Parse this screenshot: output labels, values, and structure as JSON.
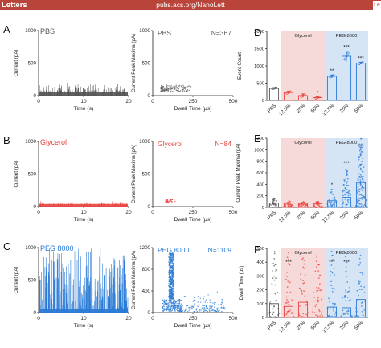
{
  "header": {
    "journal": "Letters",
    "url": "pubs.acs.org/NanoLett",
    "corner": "Le"
  },
  "colors": {
    "pbs": "#555555",
    "glycerol": "#e8433f",
    "peg": "#2b7bd6",
    "glycerol_bg": "#f6d9d9",
    "peg_bg": "#d6e5f6",
    "accent_bar": "#b9443a"
  },
  "panels": {
    "A": {
      "letter": "A",
      "label": "PBS",
      "n_label": "N=367"
    },
    "B": {
      "letter": "B",
      "label": "Glycerol",
      "n_label": "N=84"
    },
    "C": {
      "letter": "C",
      "label": "PEG 8000",
      "n_label": "N=1109"
    },
    "D": {
      "letter": "D"
    },
    "E": {
      "letter": "E"
    },
    "F": {
      "letter": "F"
    }
  },
  "chart_data": [
    {
      "id": "A-trace",
      "type": "line",
      "xlabel": "Time (s)",
      "ylabel": "Current (pA)",
      "xlim": [
        0,
        20
      ],
      "ylim": [
        0,
        1000
      ],
      "xticks": [
        "0",
        "10",
        "20"
      ],
      "yticks": [
        "0",
        "500",
        "1000"
      ],
      "series": [
        {
          "baseline": 50,
          "typical_spike_max": 200,
          "events": 367
        }
      ]
    },
    {
      "id": "A-scatter",
      "type": "scatter",
      "xlabel": "Dwell Time (μs)",
      "ylabel": "Current Peak Maxima (pA)",
      "xlim": [
        0,
        500
      ],
      "ylim": [
        0,
        1000
      ],
      "xticks": [
        "0",
        "250",
        "500"
      ],
      "yticks": [
        "0",
        "500",
        "1000"
      ],
      "series": [
        {
          "x_range": [
            50,
            300
          ],
          "y_range": [
            60,
            160
          ],
          "points": 367
        }
      ]
    },
    {
      "id": "B-trace",
      "type": "line",
      "xlabel": "Time (s)",
      "ylabel": "Current (pA)",
      "xlim": [
        0,
        20
      ],
      "ylim": [
        0,
        1000
      ],
      "xticks": [
        "0",
        "10",
        "20"
      ],
      "yticks": [
        "0",
        "500",
        "1000"
      ],
      "series": [
        {
          "baseline": 40,
          "typical_spike_max": 90,
          "events": 84
        }
      ]
    },
    {
      "id": "B-scatter",
      "type": "scatter",
      "xlabel": "Dwell Time (μs)",
      "ylabel": "Current Peak Maxima (pA)",
      "xlim": [
        0,
        500
      ],
      "ylim": [
        0,
        1000
      ],
      "xticks": [
        "0",
        "250",
        "500"
      ],
      "yticks": [
        "0",
        "500",
        "1000"
      ],
      "series": [
        {
          "x_range": [
            80,
            160
          ],
          "y_range": [
            60,
            110
          ],
          "points": 84
        }
      ]
    },
    {
      "id": "C-trace",
      "type": "line",
      "xlabel": "Time (s)",
      "ylabel": "Current (pA)",
      "xlim": [
        0,
        20
      ],
      "ylim": [
        0,
        1000
      ],
      "xticks": [
        "0",
        "10",
        "20"
      ],
      "yticks": [
        "0",
        "500",
        "1000"
      ],
      "series": [
        {
          "baseline": 50,
          "typical_spike_max": 1000,
          "events": 1109
        }
      ]
    },
    {
      "id": "C-scatter",
      "type": "scatter",
      "xlabel": "Dwell Time (μs)",
      "ylabel": "Current Peak Maxima (pA)",
      "xlim": [
        0,
        500
      ],
      "ylim": [
        0,
        1200
      ],
      "xticks": [
        "0",
        "250",
        "500"
      ],
      "yticks": [
        "0",
        "400",
        "800",
        "1200"
      ],
      "series": [
        {
          "cluster": {
            "x_center": 110,
            "y_range": [
              300,
              1100
            ]
          },
          "tail_x_range": [
            150,
            450
          ],
          "points": 1109
        }
      ]
    },
    {
      "id": "D",
      "type": "bar",
      "ylabel": "Event Count",
      "ylim": [
        0,
        2000
      ],
      "yticks": [
        "0",
        "500",
        "1000",
        "1500",
        "2000"
      ],
      "categories": [
        "PBS",
        "12.5%",
        "25%",
        "50%",
        "12.5%",
        "25%",
        "50%"
      ],
      "groups": [
        {
          "label": "Glycerol",
          "from": 1,
          "to": 3
        },
        {
          "label": "PEG 8000",
          "from": 4,
          "to": 6
        }
      ],
      "values": [
        350,
        230,
        140,
        80,
        700,
        1280,
        1080
      ],
      "errors": [
        20,
        40,
        50,
        30,
        40,
        150,
        30
      ],
      "significance": [
        "",
        "",
        "",
        "*",
        "**",
        "***",
        "***"
      ]
    },
    {
      "id": "E",
      "type": "bar",
      "ylabel": "Current Peak Maxima (pA)",
      "ylim": [
        0,
        1200
      ],
      "yticks": [
        "0",
        "200",
        "400",
        "600",
        "800",
        "1000",
        "1200"
      ],
      "categories": [
        "PBS",
        "12.5%",
        "25%",
        "50%",
        "12.5%",
        "25%",
        "50%"
      ],
      "groups": [
        {
          "label": "Glycerol",
          "from": 1,
          "to": 3
        },
        {
          "label": "PEG 8000",
          "from": 4,
          "to": 6
        }
      ],
      "values": [
        75,
        75,
        70,
        65,
        115,
        175,
        430
      ],
      "spread_max": [
        160,
        120,
        110,
        100,
        320,
        700,
        1200
      ],
      "significance": [
        "",
        "",
        "",
        "",
        "*",
        "***",
        "***"
      ]
    },
    {
      "id": "F",
      "type": "bar",
      "ylabel": "Dwell Time (μs)",
      "ylim": [
        0,
        500
      ],
      "yticks": [
        "0",
        "100",
        "200",
        "300",
        "400",
        "500"
      ],
      "categories": [
        "PBS",
        "12.5%",
        "25%",
        "50%",
        "12.5%",
        "25%",
        "50%"
      ],
      "groups": [
        {
          "label": "Glycerol",
          "from": 1,
          "to": 3
        },
        {
          "label": "PEG 8000",
          "from": 4,
          "to": 6
        }
      ],
      "values": [
        100,
        80,
        110,
        120,
        75,
        70,
        130
      ],
      "spread_max": [
        490,
        480,
        480,
        490,
        490,
        480,
        490
      ],
      "significance": [
        "",
        "***",
        "",
        "",
        "***",
        "***",
        ""
      ]
    }
  ]
}
